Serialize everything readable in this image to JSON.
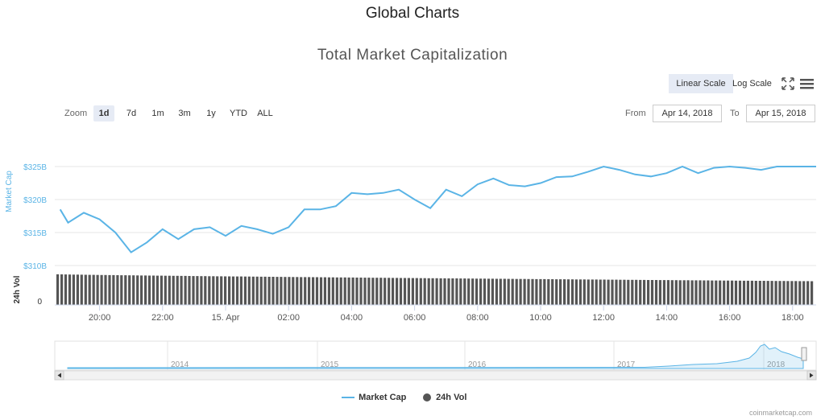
{
  "page_title": "Global Charts",
  "chart_title": "Total Market Capitalization",
  "scale": {
    "linear": "Linear Scale",
    "log": "Log Scale",
    "selected": "linear"
  },
  "icons": [
    "fullscreen-icon",
    "menu-icon"
  ],
  "zoom": {
    "label": "Zoom",
    "options": [
      "1d",
      "7d",
      "1m",
      "3m",
      "1y",
      "YTD",
      "ALL"
    ],
    "selected": "1d"
  },
  "range": {
    "from_label": "From",
    "from": "Apr 14, 2018",
    "to_label": "To",
    "to": "Apr 15, 2018"
  },
  "legend": [
    {
      "name": "Market Cap",
      "color": "#5ab4e6"
    },
    {
      "name": "24h Vol",
      "color": "#555555"
    }
  ],
  "credit": "coinmarketcap.com",
  "chart_data": {
    "type": "line",
    "title": "Total Market Capitalization",
    "x_ticks": [
      "20:00",
      "22:00",
      "15. Apr",
      "02:00",
      "04:00",
      "06:00",
      "08:00",
      "10:00",
      "12:00",
      "14:00",
      "16:00",
      "18:00"
    ],
    "y_axis": {
      "label": "Market Cap",
      "ticks": [
        "$310B",
        "$315B",
        "$320B",
        "$325B"
      ],
      "range": [
        310,
        325
      ],
      "unit": "billion USD"
    },
    "vol_axis": {
      "label": "24h Vol",
      "ticks": [
        "0"
      ]
    },
    "x_range_hours": [
      -5.25,
      18.75
    ],
    "series": [
      {
        "name": "Market Cap",
        "color": "#5ab4e6",
        "x": [
          -5.25,
          -5.0,
          -4.5,
          -4.0,
          -3.5,
          -3.0,
          -2.5,
          -2.0,
          -1.5,
          -1.0,
          -0.5,
          0.0,
          0.5,
          1.0,
          1.5,
          2.0,
          2.5,
          3.0,
          3.5,
          4.0,
          4.5,
          5.0,
          5.5,
          6.0,
          6.5,
          7.0,
          7.5,
          8.0,
          8.5,
          9.0,
          9.5,
          10.0,
          10.5,
          11.0,
          11.5,
          12.0,
          12.5,
          13.0,
          13.5,
          14.0,
          14.5,
          15.0,
          15.5,
          16.0,
          16.5,
          17.0,
          17.5,
          18.0,
          18.5,
          18.75
        ],
        "values": [
          318.5,
          316.5,
          318.0,
          317.0,
          315.0,
          312.0,
          313.5,
          315.5,
          314.0,
          315.5,
          315.8,
          314.5,
          316.0,
          315.5,
          314.8,
          315.8,
          318.5,
          318.5,
          319.0,
          321.0,
          320.8,
          321.0,
          321.5,
          320.0,
          318.7,
          321.5,
          320.5,
          322.3,
          323.2,
          322.2,
          322.0,
          322.5,
          323.4,
          323.5,
          324.2,
          325.0,
          324.5,
          323.8,
          323.5,
          324.0,
          325.0,
          324.0,
          324.8,
          325.0,
          324.8,
          324.5,
          325.0,
          325.0,
          325.0,
          325.0
        ]
      },
      {
        "name": "24h Vol",
        "color": "#555555",
        "note_values": "relative to axis max",
        "start_fraction": 0.93,
        "end_fraction": 0.72
      }
    ],
    "navigator": {
      "year_labels": [
        "2014",
        "2015",
        "2016",
        "2017",
        "2018"
      ]
    },
    "legend_position": "bottom-center",
    "grid": true
  }
}
